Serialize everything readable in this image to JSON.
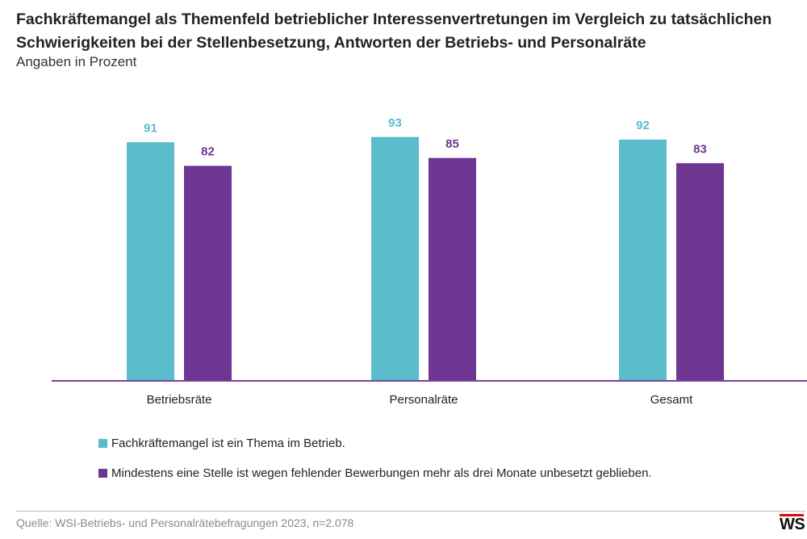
{
  "header": {
    "title": "Fachkräftemangel als Themenfeld betrieblicher Interessenvertretungen im Vergleich zu tatsächlichen Schwierigkeiten bei der Stellenbesetzung, Antworten der Betriebs- und Personalräte",
    "subtitle": "Angaben in Prozent"
  },
  "chart_data": {
    "type": "bar",
    "categories": [
      "Betriebsräte",
      "Personalräte",
      "Gesamt"
    ],
    "series": [
      {
        "name": "Fachkräftemangel ist ein Thema im Betrieb.",
        "values": [
          91,
          93,
          92
        ],
        "color": "#5bbccc"
      },
      {
        "name": "Mindestens eine Stelle ist wegen fehlender Bewerbungen mehr als drei Monate unbesetzt geblieben.",
        "values": [
          82,
          85,
          83
        ],
        "color": "#6e3592"
      }
    ],
    "ylim": [
      0,
      100
    ],
    "grid": false,
    "legend_position": "bottom-left",
    "axis_color": "#7b3f9e"
  },
  "footer": {
    "source": "Quelle: WSI-Betriebs- und Personalrätebefragungen 2023, n=2.078",
    "logo_text": "WS"
  }
}
